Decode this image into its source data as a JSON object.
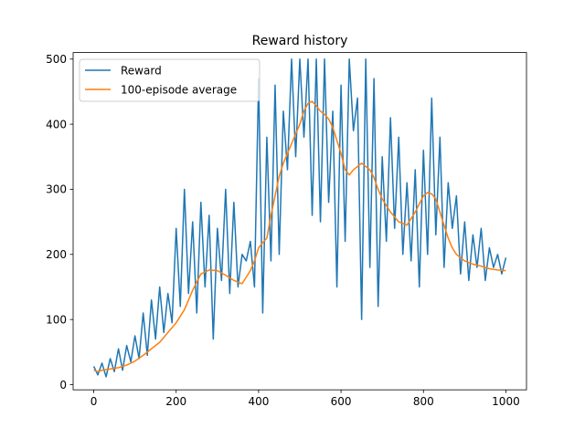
{
  "chart_data": {
    "type": "line",
    "title": "Reward history",
    "xlabel": "",
    "ylabel": "",
    "xlim": [
      -50,
      1050
    ],
    "ylim": [
      -8,
      510
    ],
    "xticks": [
      0,
      200,
      400,
      600,
      800,
      1000
    ],
    "yticks": [
      0,
      100,
      200,
      300,
      400,
      500
    ],
    "grid": false,
    "legend_position": "top-left",
    "series": [
      {
        "name": "Reward",
        "color": "#1f77b4",
        "x": [
          0,
          10,
          20,
          30,
          40,
          50,
          60,
          70,
          80,
          90,
          100,
          110,
          120,
          130,
          140,
          150,
          160,
          170,
          180,
          190,
          200,
          210,
          220,
          230,
          240,
          250,
          260,
          270,
          280,
          290,
          300,
          310,
          320,
          330,
          340,
          350,
          360,
          370,
          380,
          390,
          400,
          410,
          420,
          430,
          440,
          450,
          460,
          470,
          480,
          490,
          500,
          510,
          520,
          530,
          540,
          550,
          560,
          570,
          580,
          590,
          600,
          610,
          620,
          630,
          640,
          650,
          660,
          670,
          680,
          690,
          700,
          710,
          720,
          730,
          740,
          750,
          760,
          770,
          780,
          790,
          800,
          810,
          820,
          830,
          840,
          850,
          860,
          870,
          880,
          890,
          900,
          910,
          920,
          930,
          940,
          950,
          960,
          970,
          980,
          990,
          1000
        ],
        "values": [
          28,
          15,
          33,
          12,
          40,
          20,
          55,
          22,
          60,
          35,
          75,
          40,
          110,
          45,
          130,
          70,
          150,
          80,
          140,
          95,
          240,
          120,
          300,
          140,
          250,
          110,
          280,
          150,
          260,
          70,
          240,
          160,
          300,
          140,
          280,
          150,
          200,
          190,
          220,
          150,
          470,
          110,
          380,
          190,
          460,
          200,
          420,
          330,
          500,
          350,
          500,
          380,
          500,
          260,
          500,
          250,
          500,
          280,
          420,
          150,
          460,
          220,
          500,
          390,
          440,
          100,
          500,
          180,
          470,
          120,
          350,
          220,
          410,
          240,
          380,
          200,
          310,
          190,
          330,
          150,
          360,
          200,
          440,
          230,
          380,
          180,
          310,
          240,
          290,
          170,
          250,
          160,
          230,
          180,
          240,
          160,
          210,
          180,
          200,
          170,
          195
        ]
      },
      {
        "name": "100-episode average",
        "color": "#ff7f0e",
        "x": [
          0,
          10,
          20,
          40,
          60,
          80,
          100,
          120,
          140,
          160,
          180,
          200,
          220,
          240,
          260,
          280,
          300,
          320,
          340,
          360,
          380,
          390,
          400,
          410,
          420,
          430,
          440,
          450,
          460,
          470,
          480,
          490,
          500,
          510,
          520,
          530,
          540,
          550,
          560,
          570,
          580,
          590,
          600,
          610,
          620,
          630,
          640,
          650,
          660,
          670,
          680,
          690,
          700,
          710,
          720,
          740,
          760,
          780,
          800,
          810,
          820,
          830,
          840,
          850,
          860,
          870,
          880,
          900,
          920,
          940,
          960,
          980,
          1000
        ],
        "values": [
          22,
          20,
          22,
          24,
          26,
          30,
          36,
          45,
          55,
          65,
          80,
          95,
          115,
          145,
          170,
          176,
          175,
          168,
          160,
          155,
          175,
          190,
          210,
          218,
          225,
          260,
          290,
          320,
          340,
          355,
          370,
          385,
          400,
          420,
          432,
          435,
          428,
          420,
          415,
          408,
          395,
          375,
          355,
          330,
          322,
          330,
          335,
          340,
          335,
          330,
          318,
          300,
          285,
          275,
          265,
          250,
          245,
          265,
          290,
          295,
          293,
          285,
          265,
          245,
          225,
          210,
          200,
          190,
          185,
          182,
          178,
          176,
          175
        ]
      }
    ]
  }
}
